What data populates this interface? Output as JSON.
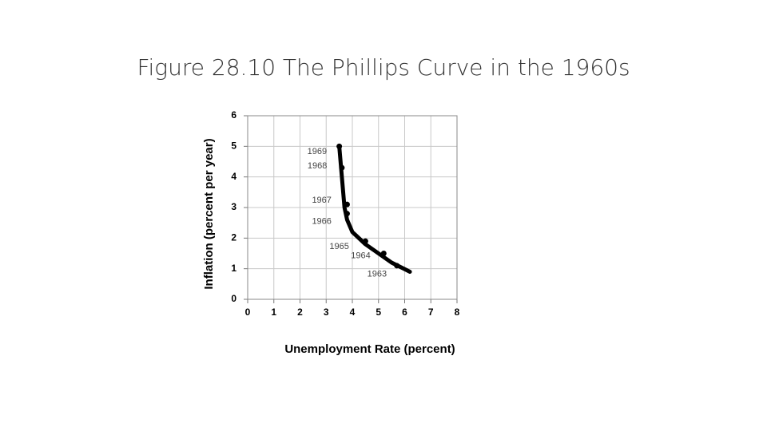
{
  "title": "Figure 28.10 The Phillips Curve in the 1960s",
  "chart_data": {
    "type": "scatter",
    "xlabel": "Unemployment Rate (percent)",
    "ylabel": "Inflation (percent per year)",
    "xlim": [
      0,
      8
    ],
    "xticks": [
      0,
      1,
      2,
      3,
      4,
      5,
      6,
      7,
      8
    ],
    "ylim": [
      0,
      6
    ],
    "yticks": [
      0,
      1,
      2,
      3,
      4,
      5,
      6
    ],
    "grid": true,
    "series": [
      {
        "type": "scatter",
        "color": "#000000",
        "labels": [
          "1969",
          "1968",
          "1967",
          "1966",
          "1965",
          "1964",
          "1963"
        ],
        "x": [
          3.5,
          3.6,
          3.8,
          3.8,
          4.5,
          5.2,
          5.7
        ],
        "values": [
          5.0,
          4.3,
          3.1,
          2.8,
          1.9,
          1.5,
          1.1
        ]
      },
      {
        "type": "line",
        "color": "#000000",
        "x": [
          3.5,
          3.6,
          3.7,
          3.8,
          4.0,
          4.5,
          5.0,
          5.5,
          6.2
        ],
        "values": [
          5.0,
          4.0,
          3.0,
          2.6,
          2.2,
          1.8,
          1.5,
          1.2,
          0.9
        ]
      }
    ]
  }
}
